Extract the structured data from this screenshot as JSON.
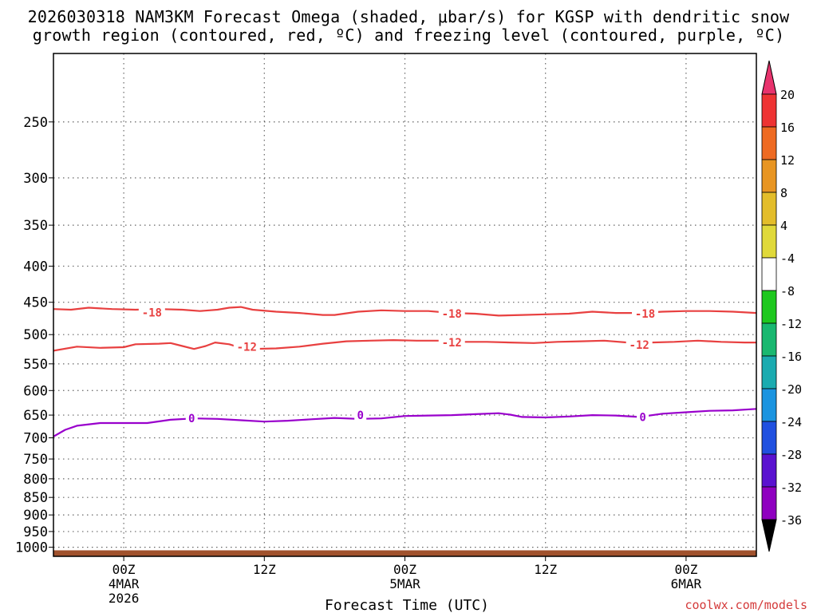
{
  "chart_data": {
    "type": "line",
    "title_line1": "2026030318 NAM3KM Forecast Omega (shaded, μbar/s) for KGSP with dendritic snow",
    "title_line2": "growth region (contoured, red, ºC) and freezing level (contoured, purple, ºC)",
    "xlabel": "Forecast Time (UTC)",
    "credit": "coolwx.com/models",
    "xlim": [
      -6,
      54
    ],
    "x_ticks": [
      {
        "x": 0,
        "label": "00Z",
        "sub1": "4MAR",
        "sub2": "2026"
      },
      {
        "x": 12,
        "label": "12Z",
        "sub1": "",
        "sub2": ""
      },
      {
        "x": 24,
        "label": "00Z",
        "sub1": "5MAR",
        "sub2": ""
      },
      {
        "x": 36,
        "label": "12Z",
        "sub1": "",
        "sub2": ""
      },
      {
        "x": 48,
        "label": "00Z",
        "sub1": "6MAR",
        "sub2": ""
      }
    ],
    "y_ticks": [
      250,
      300,
      350,
      400,
      450,
      500,
      550,
      600,
      650,
      700,
      750,
      800,
      850,
      900,
      950,
      1000
    ],
    "ylim_hPa": [
      200,
      1030
    ],
    "contours": [
      {
        "name": "-18",
        "color": "#e84040",
        "label_points": [
          [
            2.4,
            465
          ],
          [
            28,
            467
          ],
          [
            44.5,
            467
          ]
        ],
        "points": [
          [
            -6,
            460
          ],
          [
            -4.5,
            461
          ],
          [
            -3,
            458
          ],
          [
            -1,
            460
          ],
          [
            1,
            461
          ],
          [
            3,
            460
          ],
          [
            5,
            461
          ],
          [
            6.5,
            463
          ],
          [
            8,
            461
          ],
          [
            9,
            458
          ],
          [
            10,
            457
          ],
          [
            11,
            461
          ],
          [
            13,
            464
          ],
          [
            15,
            466
          ],
          [
            17,
            469
          ],
          [
            18,
            469
          ],
          [
            20,
            464
          ],
          [
            22,
            462
          ],
          [
            24,
            463
          ],
          [
            26,
            463
          ],
          [
            28,
            466
          ],
          [
            30,
            467
          ],
          [
            32,
            470
          ],
          [
            34,
            469
          ],
          [
            36,
            468
          ],
          [
            38,
            467
          ],
          [
            40,
            464
          ],
          [
            42,
            466
          ],
          [
            44,
            466
          ],
          [
            46,
            464
          ],
          [
            48,
            463
          ],
          [
            50,
            463
          ],
          [
            52,
            464
          ],
          [
            54,
            466
          ]
        ]
      },
      {
        "name": "-12",
        "color": "#e84040",
        "label_points": [
          [
            10.5,
            520
          ],
          [
            28,
            513
          ],
          [
            44,
            517
          ]
        ],
        "points": [
          [
            -6,
            527
          ],
          [
            -4,
            520
          ],
          [
            -2,
            522
          ],
          [
            0,
            521
          ],
          [
            1,
            516
          ],
          [
            3,
            515
          ],
          [
            4,
            514
          ],
          [
            5,
            519
          ],
          [
            6,
            524
          ],
          [
            7,
            519
          ],
          [
            7.8,
            513
          ],
          [
            9,
            516
          ],
          [
            10,
            522
          ],
          [
            11,
            524
          ],
          [
            13,
            523
          ],
          [
            15,
            520
          ],
          [
            17,
            515
          ],
          [
            19,
            511
          ],
          [
            21,
            510
          ],
          [
            23,
            509
          ],
          [
            25,
            510
          ],
          [
            27,
            510
          ],
          [
            29,
            512
          ],
          [
            31,
            512
          ],
          [
            33,
            513
          ],
          [
            35,
            514
          ],
          [
            37,
            512
          ],
          [
            39,
            511
          ],
          [
            41,
            510
          ],
          [
            43,
            513
          ],
          [
            45,
            513
          ],
          [
            47,
            512
          ],
          [
            49,
            510
          ],
          [
            51,
            512
          ],
          [
            53,
            513
          ],
          [
            54,
            513
          ]
        ]
      },
      {
        "name": "0",
        "color": "#9900cc",
        "label_points": [
          [
            5.8,
            657
          ],
          [
            20.2,
            650
          ],
          [
            44.3,
            654
          ]
        ],
        "points": [
          [
            -6,
            697
          ],
          [
            -5,
            682
          ],
          [
            -4,
            673
          ],
          [
            -2,
            667
          ],
          [
            0,
            667
          ],
          [
            2,
            667
          ],
          [
            4,
            660
          ],
          [
            6,
            657
          ],
          [
            8,
            658
          ],
          [
            10,
            661
          ],
          [
            12,
            664
          ],
          [
            14,
            662
          ],
          [
            16,
            659
          ],
          [
            18,
            656
          ],
          [
            20,
            658
          ],
          [
            22,
            657
          ],
          [
            24,
            652
          ],
          [
            26,
            651
          ],
          [
            28,
            650
          ],
          [
            30,
            648
          ],
          [
            32,
            646
          ],
          [
            33,
            649
          ],
          [
            34,
            654
          ],
          [
            36,
            655
          ],
          [
            38,
            653
          ],
          [
            40,
            650
          ],
          [
            42,
            651
          ],
          [
            44,
            654
          ],
          [
            46,
            647
          ],
          [
            48,
            644
          ],
          [
            50,
            641
          ],
          [
            52,
            640
          ],
          [
            54,
            637
          ]
        ]
      }
    ],
    "colorbar_levels": [
      "20",
      "16",
      "12",
      "8",
      "4",
      "-4",
      "-8",
      "-12",
      "-16",
      "-20",
      "-24",
      "-28",
      "-32",
      "-36"
    ],
    "colorbar_colors": [
      "#e8336d",
      "#ee3333",
      "#ee6a22",
      "#e89522",
      "#e3bd2a",
      "#e0d93a",
      "#ffffff",
      "#1ec81e",
      "#19b870",
      "#1aabb0",
      "#1b94e0",
      "#2050e0",
      "#5a12d0",
      "#8f00c0",
      "#a6a6a6",
      "#000000"
    ],
    "ground_color": "#a0522d",
    "ground_level_hPa": 1010
  }
}
